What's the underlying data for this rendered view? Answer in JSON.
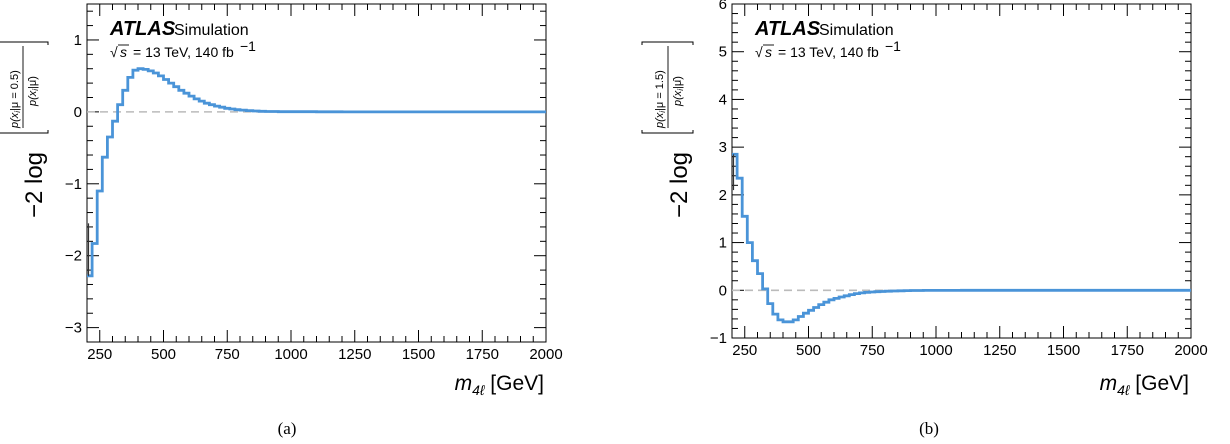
{
  "header": {
    "experiment": "ATLAS",
    "status": "Simulation",
    "energy_prefix": "s",
    "energy_text": "= 13 TeV, 140 fb",
    "energy_exp": "−1"
  },
  "colors": {
    "line": "#4a94d8",
    "reference": "#bbbbbb"
  },
  "chart_data": [
    {
      "type": "line",
      "caption": "(a)",
      "ylabel": {
        "prefix": "−2 log",
        "numerator": "p(x",
        "num_sub": "i",
        "num_rest": "|μ = 0.5)",
        "denominator": "p(x",
        "den_sub": "i",
        "den_rest": "|μ̂)"
      },
      "xlabel": {
        "var": "m",
        "sub": "4ℓ",
        "unit": " [GeV]"
      },
      "xlim": [
        200,
        2000
      ],
      "ylim": [
        -3.2,
        1.5
      ],
      "xticks": [
        250,
        500,
        750,
        1000,
        1250,
        1500,
        1750,
        2000
      ],
      "xtick_labels": [
        "250",
        "500",
        "750",
        "1000",
        "1250",
        "1500",
        "1750",
        "2000"
      ],
      "yticks": [
        -3,
        -2,
        -1,
        0,
        1
      ],
      "ytick_labels": [
        "−3",
        "−2",
        "−1",
        "0",
        "1"
      ],
      "reference_y": 0,
      "series": [
        {
          "bin_edges": [
            200,
            220,
            240,
            260,
            280,
            300,
            320,
            340,
            360,
            380,
            400,
            420,
            440,
            460,
            480,
            500,
            520,
            540,
            560,
            580,
            600,
            620,
            640,
            660,
            680,
            700,
            720,
            740,
            760,
            780,
            800,
            825,
            850,
            875,
            900,
            950,
            1000,
            1100,
            1200,
            1300,
            1400,
            1600,
            1800,
            2000
          ],
          "values": [
            -2.28,
            -1.83,
            -1.1,
            -0.63,
            -0.35,
            -0.13,
            0.1,
            0.3,
            0.48,
            0.58,
            0.6,
            0.59,
            0.57,
            0.54,
            0.5,
            0.45,
            0.4,
            0.35,
            0.3,
            0.26,
            0.22,
            0.18,
            0.15,
            0.12,
            0.1,
            0.08,
            0.065,
            0.05,
            0.04,
            0.03,
            0.025,
            0.018,
            0.012,
            0.008,
            0.005,
            0.003,
            0.002,
            0.001,
            0.0,
            0.0,
            0.0,
            0.0,
            0.0
          ],
          "band_lower": -2.28,
          "band_upper": -1.55
        }
      ]
    },
    {
      "type": "line",
      "caption": "(b)",
      "ylabel": {
        "prefix": "−2 log",
        "numerator": "p(x",
        "num_sub": "i",
        "num_rest": "|μ = 1.5)",
        "denominator": "p(x",
        "den_sub": "i",
        "den_rest": "|μ̂)"
      },
      "xlabel": {
        "var": "m",
        "sub": "4ℓ",
        "unit": " [GeV]"
      },
      "xlim": [
        200,
        2000
      ],
      "ylim": [
        -1,
        6
      ],
      "xticks": [
        250,
        500,
        750,
        1000,
        1250,
        1500,
        1750,
        2000
      ],
      "xtick_labels": [
        "250",
        "500",
        "750",
        "1000",
        "1250",
        "1500",
        "1750",
        "2000"
      ],
      "yticks": [
        -1,
        0,
        1,
        2,
        3,
        4,
        5,
        6
      ],
      "ytick_labels": [
        "−1",
        "0",
        "1",
        "2",
        "3",
        "4",
        "5",
        "6"
      ],
      "reference_y": 0,
      "series": [
        {
          "bin_edges": [
            200,
            220,
            240,
            260,
            280,
            300,
            320,
            340,
            360,
            380,
            400,
            420,
            440,
            460,
            480,
            500,
            520,
            540,
            560,
            580,
            600,
            620,
            640,
            660,
            680,
            700,
            720,
            740,
            760,
            780,
            800,
            825,
            850,
            875,
            900,
            950,
            1000,
            1100,
            1200,
            1300,
            1400,
            1600,
            1800,
            2000
          ],
          "values": [
            2.85,
            2.35,
            1.55,
            1.0,
            0.62,
            0.35,
            0.03,
            -0.28,
            -0.5,
            -0.62,
            -0.66,
            -0.66,
            -0.62,
            -0.55,
            -0.48,
            -0.42,
            -0.36,
            -0.3,
            -0.25,
            -0.2,
            -0.17,
            -0.14,
            -0.115,
            -0.09,
            -0.07,
            -0.055,
            -0.045,
            -0.035,
            -0.03,
            -0.025,
            -0.02,
            -0.015,
            -0.01,
            -0.007,
            -0.005,
            -0.003,
            -0.002,
            -0.001,
            0.0,
            0.0,
            0.0,
            0.0,
            0.0
          ],
          "band_lower": 2.1,
          "band_upper": 2.85
        }
      ]
    }
  ]
}
